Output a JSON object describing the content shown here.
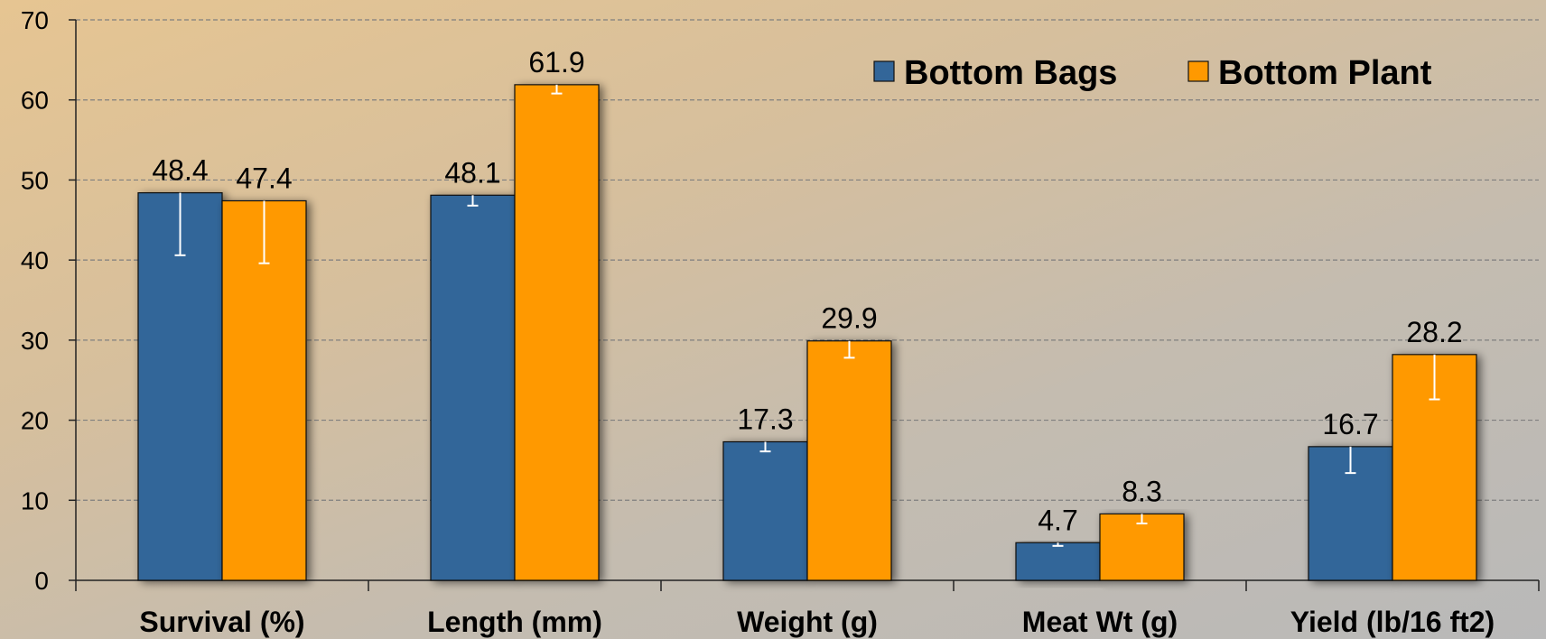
{
  "chart_data": {
    "type": "bar",
    "categories": [
      "Survival (%)",
      "Length (mm)",
      "Weight (g)",
      "Meat Wt (g)",
      "Yield (lb/16 ft2)"
    ],
    "series": [
      {
        "name": "Bottom Bags",
        "color": "#336699",
        "values": [
          48.4,
          48.1,
          17.3,
          4.7,
          16.7
        ],
        "error_low": [
          40.6,
          46.8,
          16.1,
          4.3,
          13.4
        ],
        "error_high": [
          48.4,
          48.1,
          17.3,
          4.7,
          16.7
        ]
      },
      {
        "name": "Bottom Plant",
        "color": "#ff9900",
        "values": [
          47.4,
          61.9,
          29.9,
          8.3,
          28.2
        ],
        "error_low": [
          39.6,
          60.8,
          27.8,
          7.1,
          22.6
        ],
        "error_high": [
          47.4,
          61.9,
          29.9,
          8.3,
          28.2
        ]
      }
    ],
    "ylim": [
      0,
      70
    ],
    "yticks": [
      "0",
      "10",
      "20",
      "30",
      "40",
      "50",
      "60",
      "70"
    ],
    "grid": true,
    "legend": "top-right",
    "title": "",
    "xlabel": "",
    "ylabel": ""
  }
}
